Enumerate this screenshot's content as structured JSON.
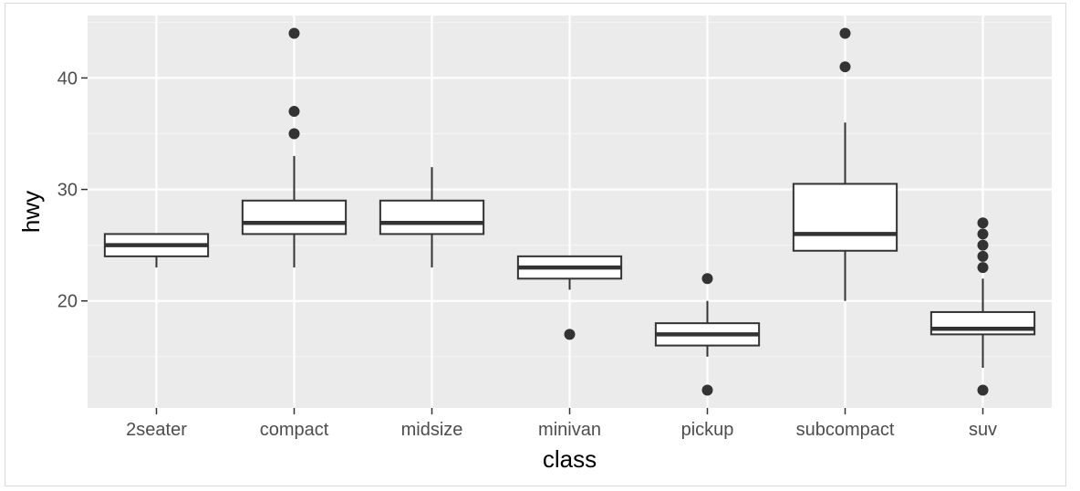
{
  "chart_data": {
    "type": "boxplot",
    "title": "",
    "xlabel": "class",
    "ylabel": "hwy",
    "ylim": [
      10.4,
      45.6
    ],
    "yticks": [
      20,
      30,
      40
    ],
    "y_minor_ticks": [
      15,
      25,
      35,
      45
    ],
    "grid": true,
    "categories": [
      "2seater",
      "compact",
      "midsize",
      "minivan",
      "pickup",
      "subcompact",
      "suv"
    ],
    "boxes": [
      {
        "category": "2seater",
        "whisker_low": 23,
        "q1": 24,
        "median": 25,
        "q3": 26,
        "whisker_high": 26,
        "outliers": []
      },
      {
        "category": "compact",
        "whisker_low": 23,
        "q1": 26,
        "median": 27,
        "q3": 29,
        "whisker_high": 33,
        "outliers": [
          35,
          37,
          44
        ]
      },
      {
        "category": "midsize",
        "whisker_low": 23,
        "q1": 26,
        "median": 27,
        "q3": 29,
        "whisker_high": 32,
        "outliers": []
      },
      {
        "category": "minivan",
        "whisker_low": 21,
        "q1": 22,
        "median": 23,
        "q3": 24,
        "whisker_high": 24,
        "outliers": [
          17
        ]
      },
      {
        "category": "pickup",
        "whisker_low": 15,
        "q1": 16,
        "median": 17,
        "q3": 18,
        "whisker_high": 20,
        "outliers": [
          12,
          22
        ]
      },
      {
        "category": "subcompact",
        "whisker_low": 20,
        "q1": 24.5,
        "median": 26,
        "q3": 30.5,
        "whisker_high": 36,
        "outliers": [
          41,
          44
        ]
      },
      {
        "category": "suv",
        "whisker_low": 14,
        "q1": 17,
        "median": 17.5,
        "q3": 19,
        "whisker_high": 22,
        "outliers": [
          12,
          23,
          24,
          25,
          26,
          27
        ]
      }
    ],
    "colors": {
      "panel_background": "#ebebeb",
      "grid_major": "#ffffff",
      "grid_minor": "#f4f4f4",
      "box_fill": "#ffffff",
      "box_stroke": "#333333",
      "outlier": "#333333",
      "tick_text": "#4d4d4d",
      "title_text": "#000000"
    }
  }
}
